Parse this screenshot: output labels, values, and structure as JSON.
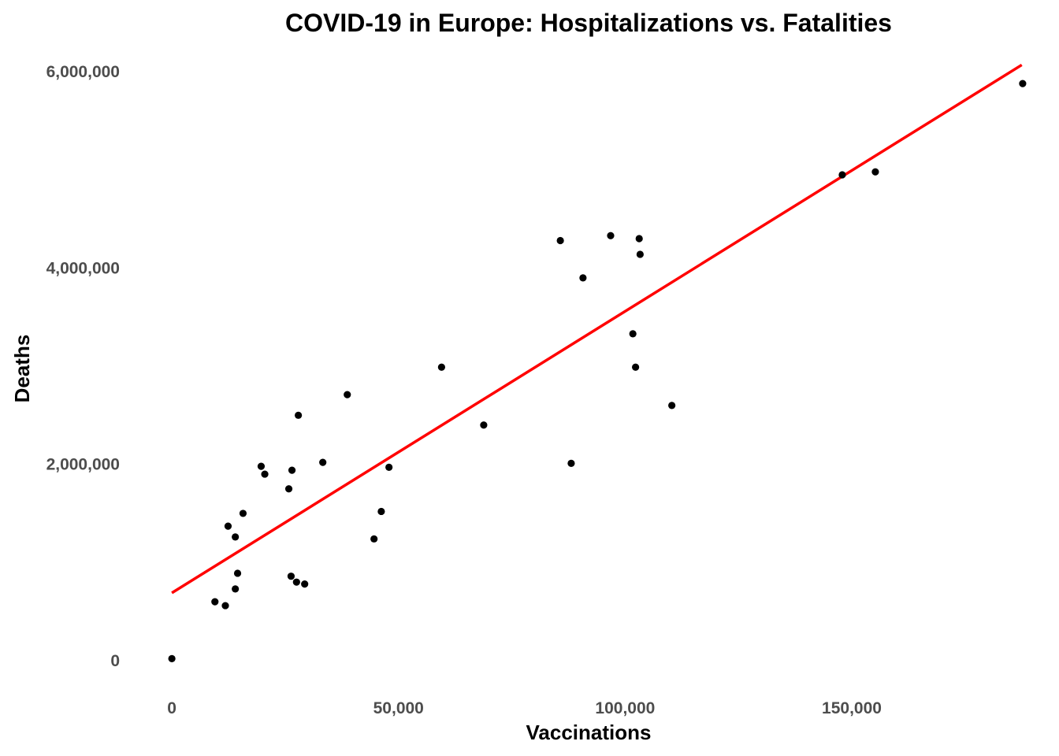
{
  "chart_data": {
    "type": "scatter",
    "title": "COVID-19 in Europe: Hospitalizations vs. Fatalities",
    "xlabel": "Vaccinations",
    "ylabel": "Deaths",
    "xlim": [
      -6800,
      190500
    ],
    "ylim": [
      -290000,
      6250000
    ],
    "x_ticks": [
      {
        "value": 0,
        "label": "0"
      },
      {
        "value": 50000,
        "label": "50,000"
      },
      {
        "value": 100000,
        "label": "100,000"
      },
      {
        "value": 150000,
        "label": "150,000"
      }
    ],
    "y_ticks": [
      {
        "value": 0,
        "label": "0"
      },
      {
        "value": 2000000,
        "label": "2,000,000"
      },
      {
        "value": 4000000,
        "label": "4,000,000"
      },
      {
        "value": 6000000,
        "label": "6,000,000"
      }
    ],
    "grid": false,
    "point_color": "#000000",
    "trend_color": "#ff0000",
    "trendline": {
      "type": "linear",
      "x": [
        0,
        187500
      ],
      "y": [
        690000,
        6070000
      ]
    },
    "points": [
      {
        "x": 0,
        "y": 20000
      },
      {
        "x": 9500,
        "y": 600000
      },
      {
        "x": 11800,
        "y": 560000
      },
      {
        "x": 12400,
        "y": 1370000
      },
      {
        "x": 14000,
        "y": 1260000
      },
      {
        "x": 14000,
        "y": 730000
      },
      {
        "x": 14500,
        "y": 890000
      },
      {
        "x": 15700,
        "y": 1500000
      },
      {
        "x": 19700,
        "y": 1980000
      },
      {
        "x": 20500,
        "y": 1900000
      },
      {
        "x": 25800,
        "y": 1750000
      },
      {
        "x": 26300,
        "y": 860000
      },
      {
        "x": 26500,
        "y": 1940000
      },
      {
        "x": 27500,
        "y": 800000
      },
      {
        "x": 27900,
        "y": 2500000
      },
      {
        "x": 29300,
        "y": 780000
      },
      {
        "x": 33300,
        "y": 2020000
      },
      {
        "x": 38700,
        "y": 2710000
      },
      {
        "x": 44600,
        "y": 1240000
      },
      {
        "x": 46200,
        "y": 1520000
      },
      {
        "x": 47900,
        "y": 1970000
      },
      {
        "x": 59500,
        "y": 2990000
      },
      {
        "x": 68800,
        "y": 2400000
      },
      {
        "x": 85700,
        "y": 4280000
      },
      {
        "x": 88100,
        "y": 2010000
      },
      {
        "x": 90700,
        "y": 3900000
      },
      {
        "x": 96800,
        "y": 4330000
      },
      {
        "x": 101700,
        "y": 3330000
      },
      {
        "x": 102300,
        "y": 2990000
      },
      {
        "x": 103100,
        "y": 4300000
      },
      {
        "x": 103300,
        "y": 4140000
      },
      {
        "x": 110300,
        "y": 2600000
      },
      {
        "x": 147900,
        "y": 4950000
      },
      {
        "x": 155200,
        "y": 4980000
      },
      {
        "x": 187700,
        "y": 5880000
      }
    ]
  }
}
